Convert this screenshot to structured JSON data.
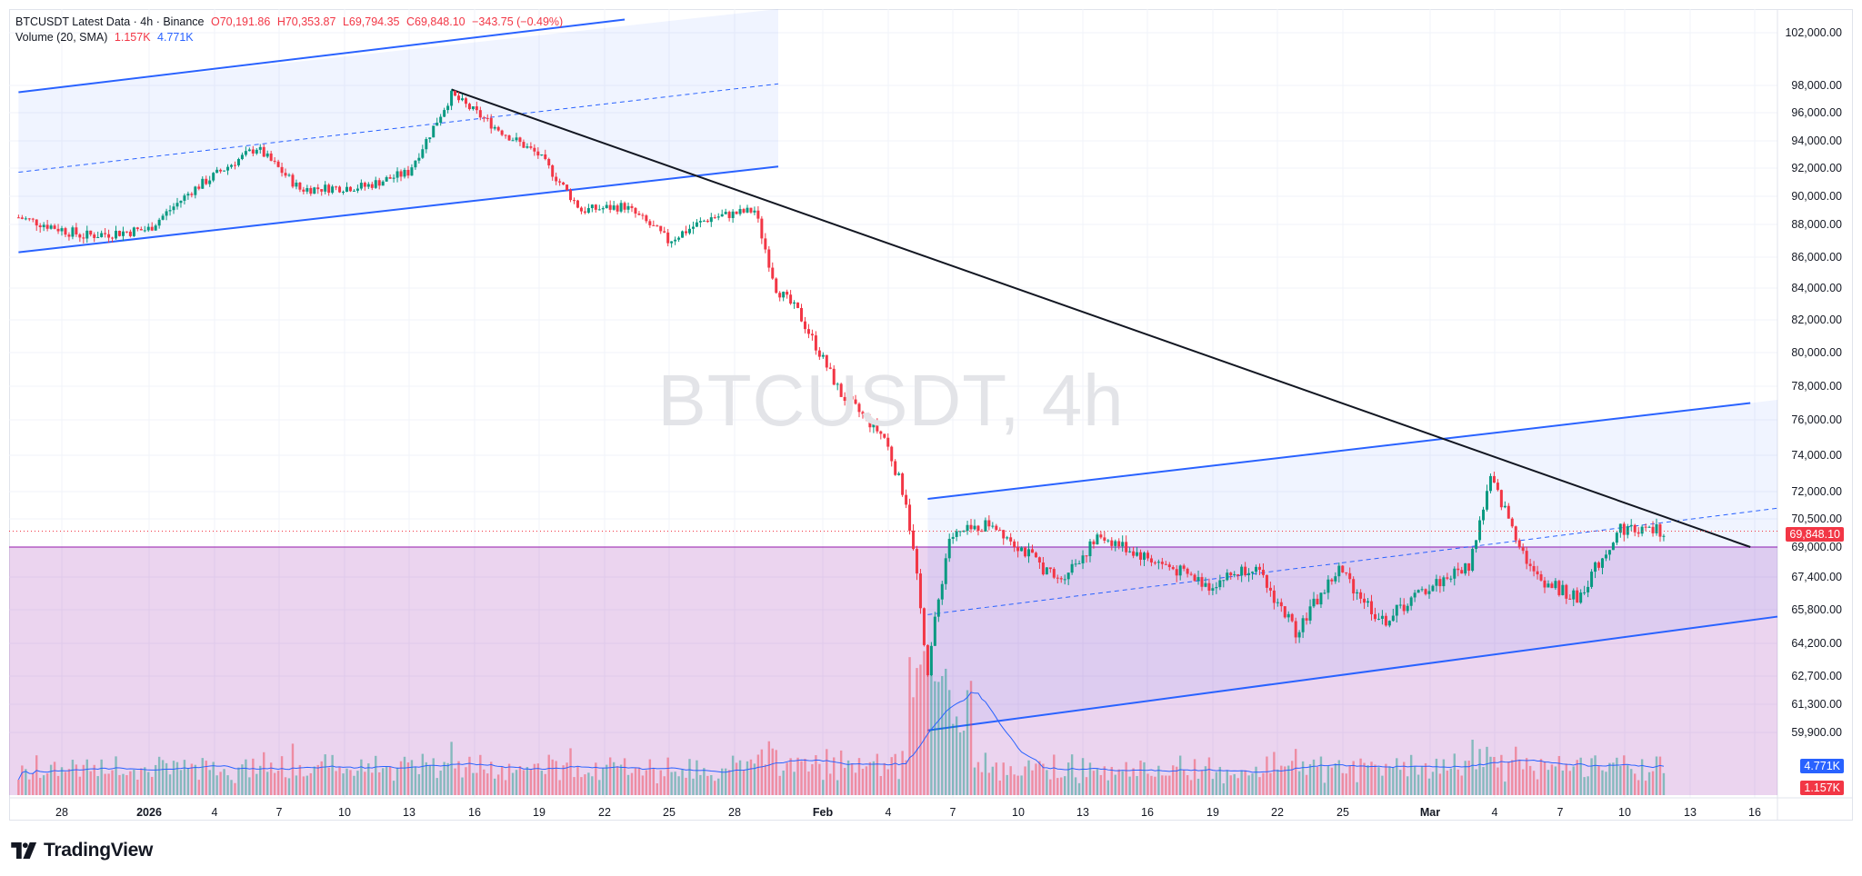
{
  "header": {
    "symbol_line": "BTCUSDT Latest Data · 4h · Binance",
    "open": "O70,191.86",
    "high": "H70,353.87",
    "low": "L69,794.35",
    "close": "C69,848.10",
    "change": "−343.75 (−0.49%)",
    "volume_label": "Volume (20, SMA)",
    "volume_value_red": "1.157K",
    "volume_value_blue": "4.771K"
  },
  "watermark": "BTCUSDT, 4h",
  "logo_text": "TradingView",
  "price_axis": [
    "102,000.00",
    "98,000.00",
    "96,000.00",
    "94,000.00",
    "92,000.00",
    "90,000.00",
    "88,000.00",
    "86,000.00",
    "84,000.00",
    "82,000.00",
    "80,000.00",
    "78,000.00",
    "76,000.00",
    "74,000.00",
    "72,000.00",
    "70,500.00",
    "69,000.00",
    "67,400.00",
    "65,800.00",
    "64,200.00",
    "62,700.00",
    "61,300.00",
    "59,900.00"
  ],
  "price_tag": "69,848.10",
  "volume_tag_blue": "4.771K",
  "volume_tag_red": "1.157K",
  "date_axis": [
    "28",
    "2026",
    "4",
    "7",
    "10",
    "13",
    "16",
    "19",
    "22",
    "25",
    "28",
    "Feb",
    "4",
    "7",
    "10",
    "13",
    "16",
    "19",
    "22",
    "25",
    "Mar",
    "4",
    "7",
    "10",
    "13",
    "16"
  ],
  "colors": {
    "up": "#089981",
    "down": "#f23645",
    "channel_line": "#2962ff",
    "channel_fill": "#2962ff",
    "trend_line": "#131722",
    "zone_fill": "#9c27b0",
    "volume_sma": "#2962ff"
  },
  "chart_data": {
    "type": "candlestick",
    "symbol": "BTCUSDT",
    "interval": "4h",
    "exchange": "Binance",
    "last_close": 69848.1,
    "y_range": [
      59000,
      103000
    ],
    "x_range": [
      "2025-12-26",
      "2026-03-17"
    ],
    "close_path": [
      {
        "x": "2025-12-26",
        "y": 88500
      },
      {
        "x": "2025-12-29",
        "y": 87300
      },
      {
        "x": "2026-01-01",
        "y": 87700
      },
      {
        "x": "2026-01-03",
        "y": 90400
      },
      {
        "x": "2026-01-06",
        "y": 93500
      },
      {
        "x": "2026-01-08",
        "y": 90500
      },
      {
        "x": "2026-01-11",
        "y": 90700
      },
      {
        "x": "2026-01-13",
        "y": 91700
      },
      {
        "x": "2026-01-15",
        "y": 97300
      },
      {
        "x": "2026-01-17",
        "y": 95000
      },
      {
        "x": "2026-01-19",
        "y": 93000
      },
      {
        "x": "2026-01-21",
        "y": 89000
      },
      {
        "x": "2026-01-23",
        "y": 89300
      },
      {
        "x": "2026-01-25",
        "y": 87000
      },
      {
        "x": "2026-01-27",
        "y": 88500
      },
      {
        "x": "2026-01-29",
        "y": 89000
      },
      {
        "x": "2026-01-30",
        "y": 84000
      },
      {
        "x": "2026-01-31",
        "y": 82500
      },
      {
        "x": "2026-02-02",
        "y": 77500
      },
      {
        "x": "2026-02-04",
        "y": 75000
      },
      {
        "x": "2026-02-05",
        "y": 71500
      },
      {
        "x": "2026-02-06",
        "y": 63000
      },
      {
        "x": "2026-02-07",
        "y": 69500
      },
      {
        "x": "2026-02-09",
        "y": 70300
      },
      {
        "x": "2026-02-12",
        "y": 67200
      },
      {
        "x": "2026-02-14",
        "y": 69600
      },
      {
        "x": "2026-02-16",
        "y": 68500
      },
      {
        "x": "2026-02-19",
        "y": 67000
      },
      {
        "x": "2026-02-21",
        "y": 68000
      },
      {
        "x": "2026-02-23",
        "y": 64800
      },
      {
        "x": "2026-02-25",
        "y": 67800
      },
      {
        "x": "2026-02-27",
        "y": 65200
      },
      {
        "x": "2026-03-01",
        "y": 66800
      },
      {
        "x": "2026-03-03",
        "y": 68000
      },
      {
        "x": "2026-03-04",
        "y": 72700
      },
      {
        "x": "2026-03-06",
        "y": 67500
      },
      {
        "x": "2026-03-08",
        "y": 66300
      },
      {
        "x": "2026-03-10",
        "y": 70000
      },
      {
        "x": "2026-03-12",
        "y": 69848
      }
    ],
    "drawings": {
      "trend_line": [
        {
          "x": "2026-01-15",
          "y": 97700
        },
        {
          "x": "2026-03-16",
          "y": 69000
        }
      ],
      "channel_1": {
        "lower": [
          {
            "x": "2025-12-26",
            "y": 86300
          },
          {
            "x": "2026-01-30",
            "y": 92100
          }
        ],
        "upper": [
          {
            "x": "2025-12-26",
            "y": 97500
          },
          {
            "x": "2026-01-23",
            "y": 103000
          }
        ]
      },
      "channel_2": {
        "lower": [
          {
            "x": "2026-02-06",
            "y": 60000
          },
          {
            "x": "2026-03-16",
            "y": 65300
          }
        ],
        "upper": [
          {
            "x": "2026-02-06",
            "y": 71600
          },
          {
            "x": "2026-03-16",
            "y": 77000
          }
        ]
      },
      "support_zone_top": 69000
    },
    "volume_sma_tag": "4.771K",
    "volume_last_tag": "1.157K"
  }
}
